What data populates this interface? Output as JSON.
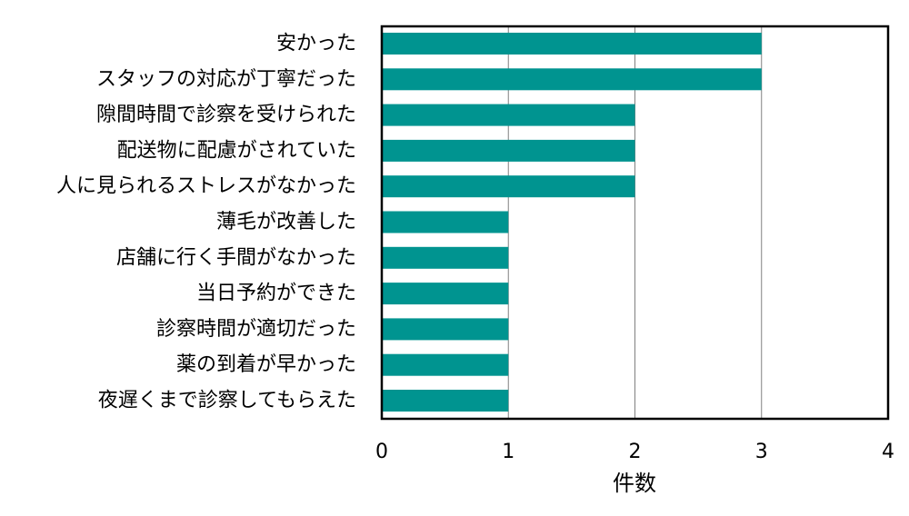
{
  "chart_data": {
    "type": "bar",
    "orientation": "horizontal",
    "categories": [
      "安かった",
      "スタッフの対応が丁寧だった",
      "隙間時間で診察を受けられた",
      "配送物に配慮がされていた",
      "人に見られるストレスがなかった",
      "薄毛が改善した",
      "店舗に行く手間がなかった",
      "当日予約ができた",
      "診察時間が適切だった",
      "薬の到着が早かった",
      "夜遅くまで診察してもらえた"
    ],
    "values": [
      3,
      3,
      2,
      2,
      2,
      1,
      1,
      1,
      1,
      1,
      1
    ],
    "xlabel": "件数",
    "ylabel": "",
    "xlim": [
      0,
      4
    ],
    "xticks": [
      0,
      1,
      2,
      3,
      4
    ],
    "grid": "vertical",
    "legend": "none",
    "bar_color": "#009490",
    "grid_color": "#808080",
    "frame_color": "#000000"
  }
}
